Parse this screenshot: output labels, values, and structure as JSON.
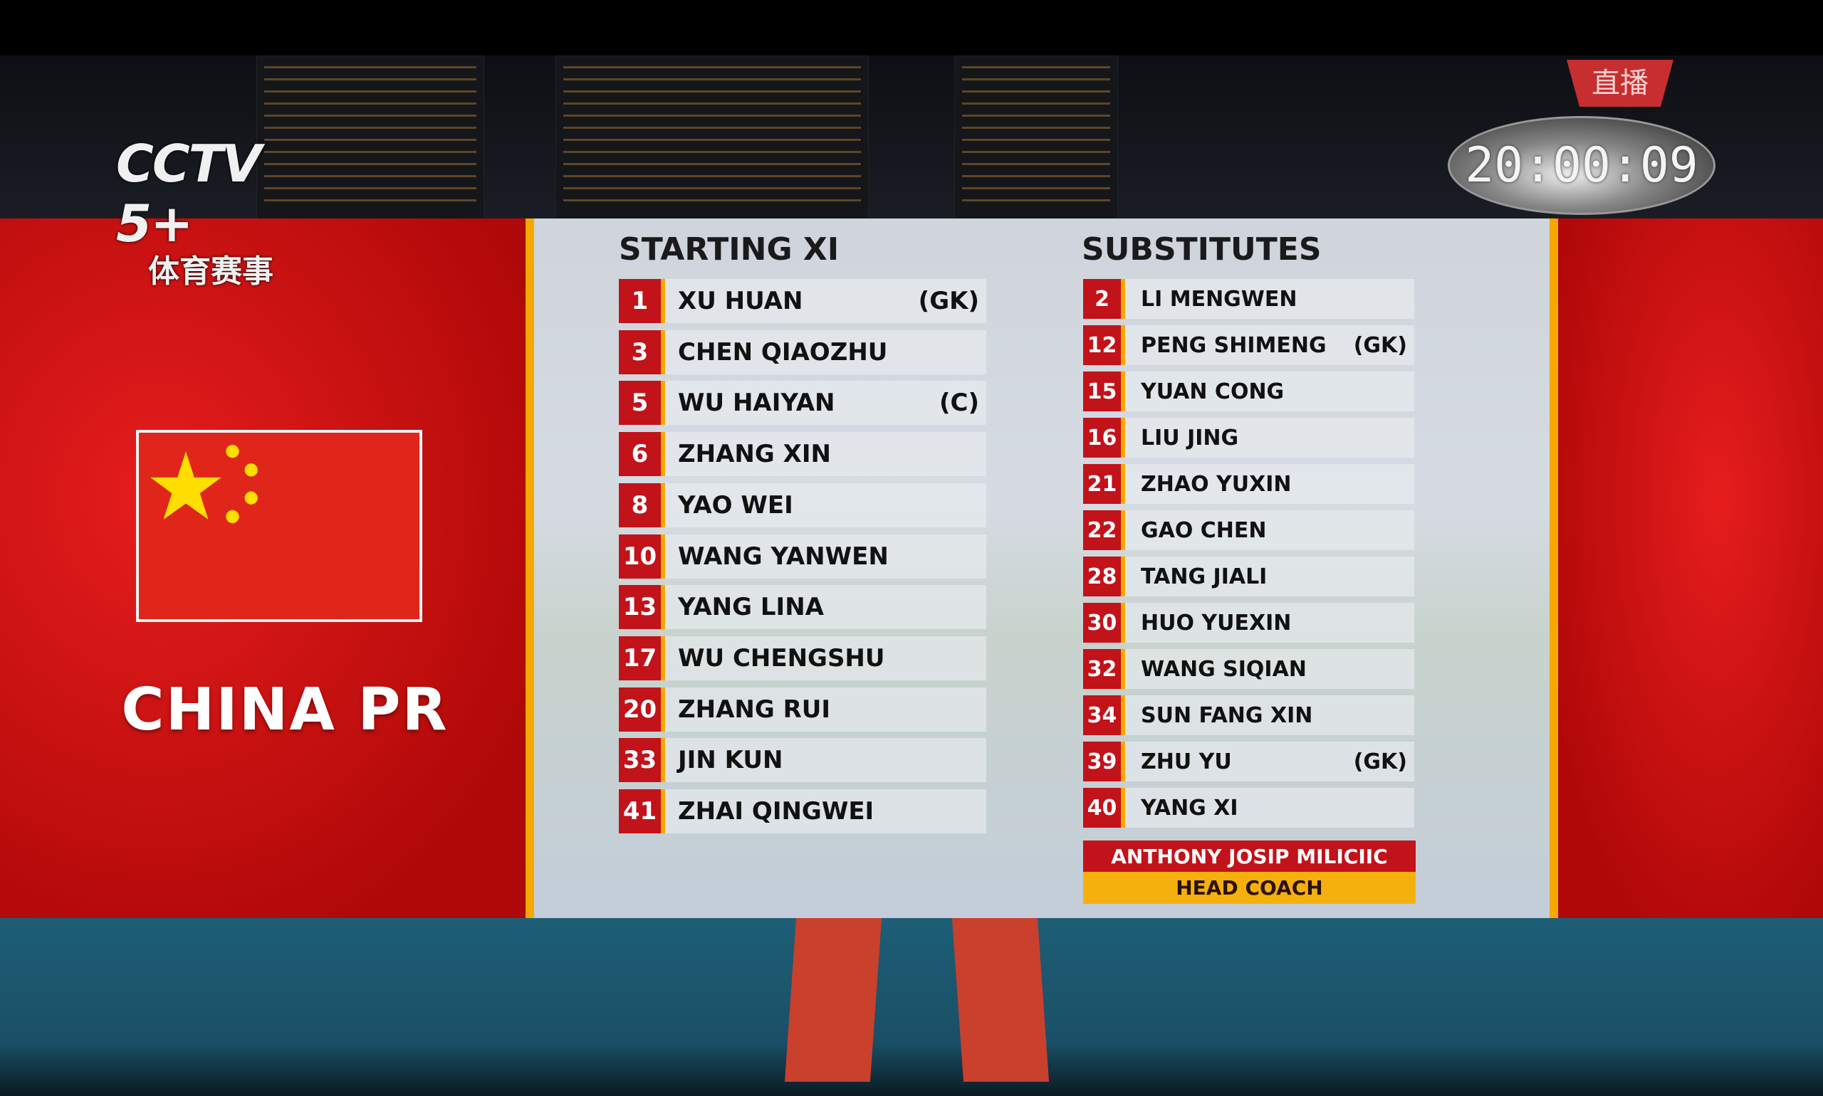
{
  "broadcast": {
    "channel": "CCTV 5+",
    "channel_subtitle": "体育赛事",
    "clock": "20:00:09",
    "live_label": "直播"
  },
  "team": {
    "name": "CHINA PR",
    "flag": "china-flag"
  },
  "starting": {
    "title": "STARTING XI",
    "players": [
      {
        "num": "1",
        "name": "XU HUAN",
        "tag": "(GK)"
      },
      {
        "num": "3",
        "name": "CHEN QIAOZHU",
        "tag": ""
      },
      {
        "num": "5",
        "name": "WU HAIYAN",
        "tag": "(C)"
      },
      {
        "num": "6",
        "name": "ZHANG XIN",
        "tag": ""
      },
      {
        "num": "8",
        "name": "YAO WEI",
        "tag": ""
      },
      {
        "num": "10",
        "name": "WANG YANWEN",
        "tag": ""
      },
      {
        "num": "13",
        "name": "YANG LINA",
        "tag": ""
      },
      {
        "num": "17",
        "name": "WU CHENGSHU",
        "tag": ""
      },
      {
        "num": "20",
        "name": "ZHANG RUI",
        "tag": ""
      },
      {
        "num": "33",
        "name": "JIN KUN",
        "tag": ""
      },
      {
        "num": "41",
        "name": "ZHAI QINGWEI",
        "tag": ""
      }
    ]
  },
  "subs": {
    "title": "SUBSTITUTES",
    "players": [
      {
        "num": "2",
        "name": "LI MENGWEN",
        "tag": ""
      },
      {
        "num": "12",
        "name": "PENG SHIMENG",
        "tag": "(GK)"
      },
      {
        "num": "15",
        "name": "YUAN CONG",
        "tag": ""
      },
      {
        "num": "16",
        "name": "LIU JING",
        "tag": ""
      },
      {
        "num": "21",
        "name": "ZHAO YUXIN",
        "tag": ""
      },
      {
        "num": "22",
        "name": "GAO CHEN",
        "tag": ""
      },
      {
        "num": "28",
        "name": "TANG JIALI",
        "tag": ""
      },
      {
        "num": "30",
        "name": "HUO YUEXIN",
        "tag": ""
      },
      {
        "num": "32",
        "name": "WANG SIQIAN",
        "tag": ""
      },
      {
        "num": "34",
        "name": "SUN FANG XIN",
        "tag": ""
      },
      {
        "num": "39",
        "name": "ZHU YU",
        "tag": "(GK)"
      },
      {
        "num": "40",
        "name": "YANG XI",
        "tag": ""
      }
    ]
  },
  "coach": {
    "name": "ANTHONY JOSIP MILICIIC",
    "role": "HEAD COACH"
  },
  "colors": {
    "red": "#c2121a",
    "gold": "#f6a800"
  }
}
